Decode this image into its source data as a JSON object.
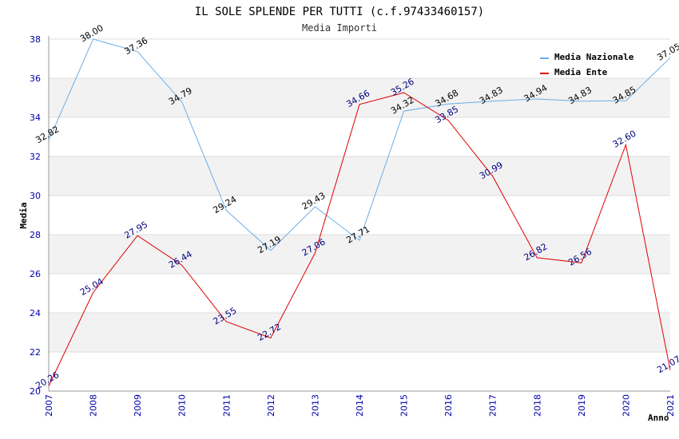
{
  "chart_data": {
    "type": "line",
    "title": "IL SOLE SPLENDE PER TUTTI (c.f.97433460157)",
    "subtitle": "Media Importi",
    "xlabel": "Anno",
    "ylabel": "Media",
    "ylim": [
      20,
      38
    ],
    "yticks": [
      "20",
      "22",
      "24",
      "26",
      "28",
      "30",
      "32",
      "34",
      "36",
      "38"
    ],
    "categories": [
      "2007",
      "2008",
      "2009",
      "2010",
      "2011",
      "2012",
      "2013",
      "2014",
      "2015",
      "2016",
      "2017",
      "2018",
      "2019",
      "2020",
      "2021"
    ],
    "series": [
      {
        "name": "Media Nazionale",
        "color": "#6aaee8",
        "label_color": "#000000",
        "values": [
          32.82,
          38.0,
          37.36,
          34.79,
          29.24,
          27.19,
          29.43,
          27.71,
          34.32,
          34.68,
          34.83,
          34.94,
          34.83,
          34.85,
          37.05
        ],
        "labels": [
          "32.82",
          "38.00",
          "37.36",
          "34.79",
          "29.24",
          "27.19",
          "29.43",
          "27.71",
          "34.32",
          "34.68",
          "34.83",
          "34.94",
          "34.83",
          "34.85",
          "37.05"
        ]
      },
      {
        "name": "Media Ente",
        "color": "#e00000",
        "label_color": "#000080",
        "values": [
          20.26,
          25.04,
          27.95,
          26.44,
          23.55,
          22.72,
          27.06,
          34.66,
          35.26,
          33.85,
          30.99,
          26.82,
          26.56,
          32.6,
          21.07
        ],
        "labels": [
          "20.26",
          "25.04",
          "27.95",
          "26.44",
          "23.55",
          "22.72",
          "27.06",
          "34.66",
          "35.26",
          "33.85",
          "30.99",
          "26.82",
          "26.56",
          "32.60",
          "21.07"
        ]
      }
    ],
    "grid": true,
    "legend_position": "top-right"
  }
}
